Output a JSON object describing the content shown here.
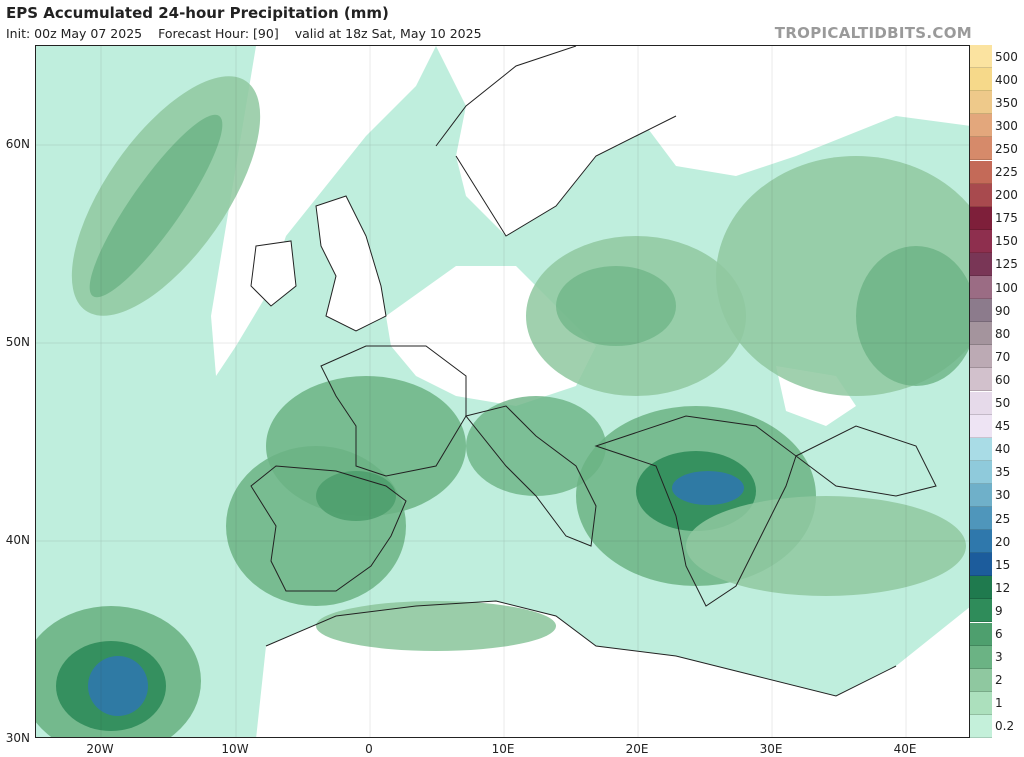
{
  "header": {
    "title": "EPS Accumulated 24-hour Precipitation (mm)",
    "init": "Init: 00z May 07 2025",
    "forecast_hour": "Forecast Hour: [90]",
    "valid": "valid at 18z Sat, May 10 2025",
    "brand": "TROPICALTIDBITS.COM"
  },
  "axes": {
    "lat_labels": [
      "60N",
      "50N",
      "40N",
      "30N"
    ],
    "lon_labels": [
      "20W",
      "10W",
      "0",
      "10E",
      "20E",
      "30E",
      "40E"
    ]
  },
  "legend": {
    "levels": [
      "500",
      "400",
      "350",
      "300",
      "250",
      "225",
      "200",
      "175",
      "150",
      "125",
      "100",
      "90",
      "80",
      "70",
      "60",
      "50",
      "45",
      "40",
      "35",
      "30",
      "25",
      "20",
      "15",
      "12",
      "9",
      "6",
      "3",
      "2",
      "1",
      "0.2"
    ],
    "colors": [
      "#fbe3a0",
      "#f6d98a",
      "#eec98a",
      "#e3a77c",
      "#d68a6a",
      "#c46a58",
      "#a84a4e",
      "#7e1f3a",
      "#8e2f4e",
      "#793656",
      "#9b6c84",
      "#8c7b8c",
      "#a4949d",
      "#bcaab4",
      "#d2c1cc",
      "#e6daea",
      "#eee4f4",
      "#a9dce6",
      "#8fcadb",
      "#6fb0c9",
      "#4f96bb",
      "#2f78ac",
      "#1c5c9c",
      "#1f7a4e",
      "#2f8c5a",
      "#4e9f6e",
      "#6bb384",
      "#8fc8a0",
      "#ace0bd",
      "#c4f0da"
    ]
  },
  "map": {
    "region": "Europe",
    "ocean_color": "#bfeedd",
    "land_color": "#ffffff",
    "heavy_color": "#2f78ac"
  }
}
